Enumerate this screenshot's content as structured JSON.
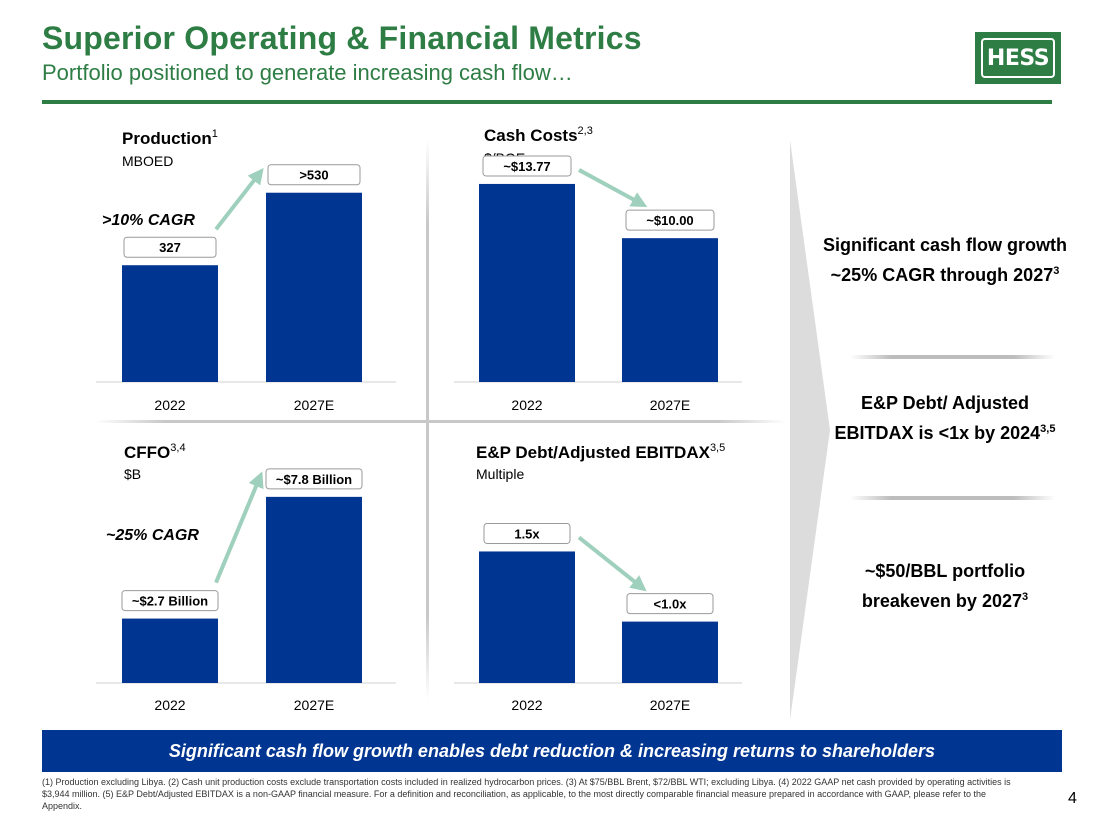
{
  "header": {
    "title": "Superior Operating & Financial Metrics",
    "subtitle": "Portfolio positioned to generate increasing cash flow…",
    "logo_text": "HESS"
  },
  "colors": {
    "brand_green": "#2e7d45",
    "bar_blue": "#003591",
    "arrow_green": "#9fd0bd",
    "banner_blue": "#003591"
  },
  "chart_data": [
    {
      "type": "bar",
      "title": "Production",
      "title_sup": "1",
      "unit": "MBOED",
      "categories": [
        "2022",
        "2027E"
      ],
      "values": [
        327,
        530
      ],
      "labels": [
        "327",
        ">530"
      ],
      "ylim": [
        0,
        560
      ],
      "annotation": ">10% CAGR"
    },
    {
      "type": "bar",
      "title": "Cash Costs",
      "title_sup": "2,3",
      "unit": "$/BOE",
      "categories": [
        "2022",
        "2027E"
      ],
      "values": [
        13.77,
        10.0
      ],
      "labels": [
        "~$13.77",
        "~$10.00"
      ],
      "ylim": [
        0,
        14.6
      ]
    },
    {
      "type": "bar",
      "title": "CFFO",
      "title_sup": "3,4",
      "unit": "$B",
      "categories": [
        "2022",
        "2027E"
      ],
      "values": [
        2.7,
        7.8
      ],
      "labels": [
        "~$2.7 Billion",
        "~$7.8 Billion"
      ],
      "ylim": [
        0,
        8.8
      ],
      "annotation": "~25% CAGR"
    },
    {
      "type": "bar",
      "title": "E&P Debt/Adjusted EBITDAX",
      "title_sup": "3,5",
      "unit": "Multiple",
      "categories": [
        "2022",
        "2027E"
      ],
      "values": [
        1.5,
        0.7
      ],
      "labels": [
        "1.5x",
        "<1.0x"
      ],
      "ylim": [
        0,
        2.6
      ]
    }
  ],
  "right_panel": [
    {
      "text": "Significant cash flow growth ~25% CAGR through 2027",
      "sup": "3"
    },
    {
      "text": "E&P Debt/ Adjusted EBITDAX is <1x by 2024",
      "sup": "3,5"
    },
    {
      "text": "~$50/BBL portfolio breakeven by 2027",
      "sup": "3"
    }
  ],
  "banner": {
    "text": "Significant cash flow growth enables debt reduction & increasing returns to shareholders"
  },
  "footnote": "(1) Production excluding Libya. (2) Cash unit production costs exclude transportation costs included in realized hydrocarbon prices. (3) At $75/BBL Brent, $72/BBL WTI; excluding Libya. (4) 2022 GAAP net cash provided by operating activities is $3,944 million. (5) E&P Debt/Adjusted EBITDAX is a non-GAAP financial measure. For a definition and reconciliation, as applicable, to the most directly comparable financial measure prepared in accordance with GAAP, please refer to the Appendix.",
  "page_number": "4"
}
